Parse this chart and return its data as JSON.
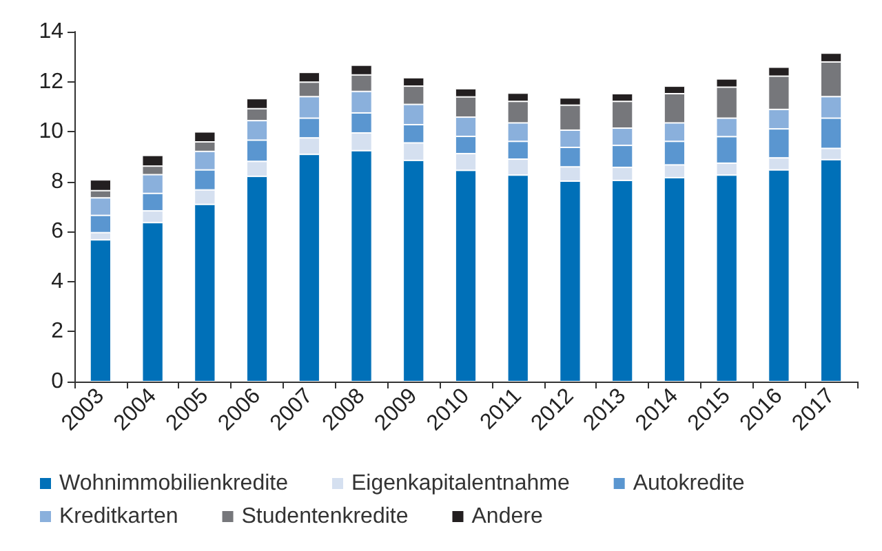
{
  "chart_data": {
    "type": "bar",
    "stacked": true,
    "categories": [
      "2003",
      "2004",
      "2005",
      "2006",
      "2007",
      "2008",
      "2009",
      "2010",
      "2011",
      "2012",
      "2013",
      "2014",
      "2015",
      "2016",
      "2017"
    ],
    "ylim": [
      0,
      14
    ],
    "yticks": [
      0,
      2,
      4,
      6,
      8,
      10,
      12,
      14
    ],
    "grid": false,
    "legend": "bottom",
    "series": [
      {
        "name": "Wohnimmobilienkredite",
        "color": "#0070b8",
        "values": [
          5.67,
          6.36,
          7.09,
          8.21,
          9.09,
          9.24,
          8.85,
          8.45,
          8.26,
          8.02,
          8.05,
          8.16,
          8.26,
          8.47,
          8.88
        ]
      },
      {
        "name": "Eigenkapitalentnahme",
        "color": "#d5e0f0",
        "values": [
          0.29,
          0.47,
          0.58,
          0.6,
          0.66,
          0.71,
          0.7,
          0.67,
          0.64,
          0.57,
          0.52,
          0.51,
          0.48,
          0.48,
          0.45
        ]
      },
      {
        "name": "Autokredite",
        "color": "#5a96d0",
        "values": [
          0.69,
          0.7,
          0.8,
          0.85,
          0.79,
          0.8,
          0.73,
          0.69,
          0.71,
          0.78,
          0.88,
          0.94,
          1.06,
          1.16,
          1.21
        ]
      },
      {
        "name": "Kreditkarten",
        "color": "#8ab0dc",
        "values": [
          0.7,
          0.75,
          0.74,
          0.78,
          0.86,
          0.86,
          0.81,
          0.77,
          0.74,
          0.69,
          0.69,
          0.74,
          0.74,
          0.78,
          0.86
        ]
      },
      {
        "name": "Studentenkredite",
        "color": "#76777b",
        "values": [
          0.29,
          0.34,
          0.38,
          0.48,
          0.58,
          0.66,
          0.73,
          0.81,
          0.86,
          1.0,
          1.07,
          1.17,
          1.24,
          1.33,
          1.39
        ]
      },
      {
        "name": "Andere",
        "color": "#231f20",
        "values": [
          0.43,
          0.43,
          0.4,
          0.4,
          0.39,
          0.39,
          0.34,
          0.33,
          0.33,
          0.29,
          0.31,
          0.3,
          0.33,
          0.36,
          0.35
        ]
      }
    ]
  }
}
